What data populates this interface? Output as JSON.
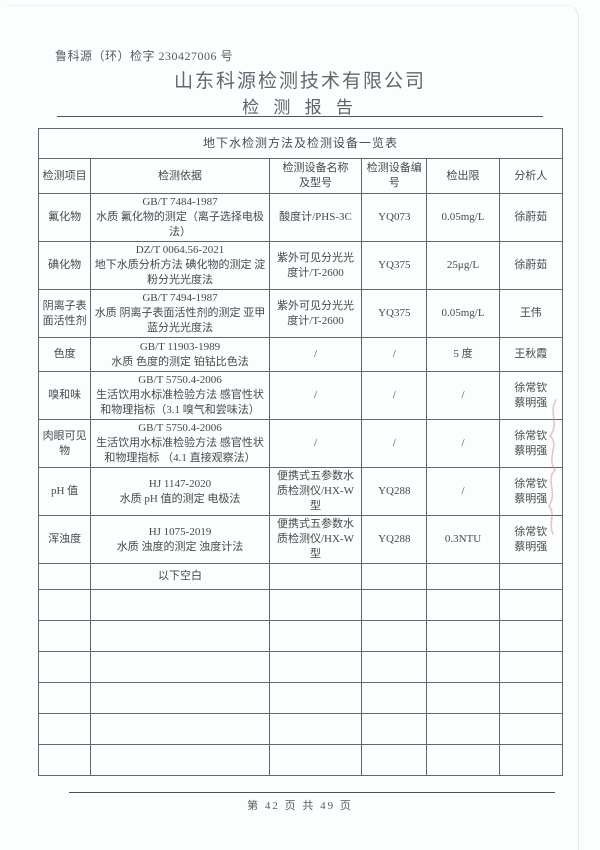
{
  "header": {
    "doc_number": "鲁科源（环）检字 230427006 号",
    "company_name": "山东科源检测技术有限公司",
    "report_title": "检 测 报 告"
  },
  "table": {
    "title": "地下水检测方法及检测设备一览表",
    "columns": [
      "检测项目",
      "检测依据",
      "检测设备名称\n及型号",
      "检测设备编\n号",
      "检出限",
      "分析人"
    ],
    "rows": [
      {
        "kind": "data",
        "cells": [
          "氟化物",
          "GB/T 7484-1987\n水质 氟化物的测定（离子选择电极法）",
          "酸度计/PHS-3C",
          "YQ073",
          "0.05mg/L",
          "徐蔚茹"
        ]
      },
      {
        "kind": "data",
        "light_cols": [
          3,
          4,
          5
        ],
        "cells": [
          "碘化物",
          "DZ/T 0064.56-2021\n地下水质分析方法 碘化物的测定 淀粉分光光度法",
          "紫外可见分光光度计/T-2600",
          "YQ375",
          "25μg/L",
          "徐蔚茹"
        ]
      },
      {
        "kind": "data",
        "cells": [
          "阴离子表面活性剂",
          "GB/T 7494-1987\n水质 阴离子表面活性剂的测定 亚甲蓝分光光度法",
          "紫外可见分光光度计/T-2600",
          "YQ375",
          "0.05mg/L",
          "王伟"
        ]
      },
      {
        "kind": "data",
        "cells": [
          "色度",
          "GB/T 11903-1989\n水质 色度的测定 铂钴比色法",
          "/",
          "/",
          "5 度",
          "王秋霞"
        ]
      },
      {
        "kind": "data",
        "cells": [
          "嗅和味",
          "GB/T 5750.4-2006\n生活饮用水标准检验方法 感官性状和物理指标（3.1 嗅气和尝味法）",
          "/",
          "/",
          "/",
          "徐常钦\n蔡明强"
        ]
      },
      {
        "kind": "data",
        "cells": [
          "肉眼可见物",
          "GB/T 5750.4-2006\n生活饮用水标准检验方法 感官性状和物理指标 （4.1 直接观察法）",
          "/",
          "/",
          "/",
          "徐常钦\n蔡明强"
        ]
      },
      {
        "kind": "data",
        "cells": [
          "pH 值",
          "HJ 1147-2020\n水质 pH 值的测定 电极法",
          "便携式五参数水质检测仪/HX-W 型",
          "YQ288",
          "/",
          "徐常钦\n蔡明强"
        ]
      },
      {
        "kind": "data",
        "cells": [
          "浑浊度",
          "HJ 1075-2019\n水质 浊度的测定 浊度计法",
          "便携式五参数水质检测仪/HX-W 型",
          "YQ288",
          "0.3NTU",
          "徐常钦\n蔡明强"
        ]
      },
      {
        "kind": "note",
        "cells": [
          "",
          "以下空白",
          "",
          "",
          "",
          ""
        ]
      },
      {
        "kind": "empty",
        "cells": [
          "",
          "",
          "",
          "",
          "",
          ""
        ]
      },
      {
        "kind": "empty",
        "cells": [
          "",
          "",
          "",
          "",
          "",
          ""
        ]
      },
      {
        "kind": "empty",
        "cells": [
          "",
          "",
          "",
          "",
          "",
          ""
        ]
      },
      {
        "kind": "empty",
        "cells": [
          "",
          "",
          "",
          "",
          "",
          ""
        ]
      },
      {
        "kind": "empty",
        "cells": [
          "",
          "",
          "",
          "",
          "",
          ""
        ]
      },
      {
        "kind": "empty",
        "cells": [
          "",
          "",
          "",
          "",
          "",
          ""
        ]
      }
    ]
  },
  "footer": {
    "page_indicator": "第 42 页 共 49 页"
  },
  "colors": {
    "ink": "#4a4f55",
    "ink_light": "#8e949b",
    "title_ink": "#62686f",
    "table_border_outer": "#3e434a",
    "table_border_inner": "#61676e",
    "margin_mark": "#d championed"
  }
}
